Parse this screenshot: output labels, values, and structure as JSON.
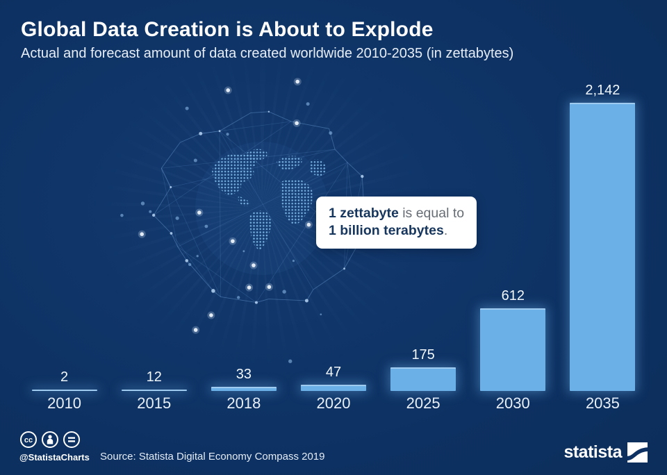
{
  "header": {
    "title": "Global Data Creation is About to Explode",
    "subtitle": "Actual and forecast amount of data created worldwide 2010-2035 (in zettabytes)"
  },
  "callout": {
    "line1_bold": "1 zettabyte",
    "line1_rest": " is equal to",
    "line2_bold": "1 billion terabytes",
    "line2_rest": "."
  },
  "chart_data": {
    "type": "bar",
    "categories": [
      "2010",
      "2015",
      "2018",
      "2020",
      "2025",
      "2030",
      "2035"
    ],
    "values": [
      2,
      12,
      33,
      47,
      175,
      612,
      2142
    ],
    "value_labels": [
      "2",
      "12",
      "33",
      "47",
      "175",
      "612",
      "2,142"
    ],
    "title": "Global Data Creation is About to Explode",
    "xlabel": "year",
    "ylabel": "data created (zettabytes)",
    "ylim": [
      0,
      2142
    ],
    "grid": false,
    "legend": false,
    "bar_color": "#6cb0e8",
    "data_labels_position": "above bars"
  },
  "footer": {
    "license_icons": [
      "cc-icon",
      "attribution-icon",
      "nd-icon"
    ],
    "handle": "@StatistaCharts",
    "source": "Source: Statista Digital Economy Compass 2019",
    "brand": "statista"
  },
  "colors": {
    "background": "#0d3162",
    "bar": "#6cb0e8",
    "title_text": "#ffffff",
    "callout_bold": "#17365d",
    "callout_text": "#666d74"
  }
}
